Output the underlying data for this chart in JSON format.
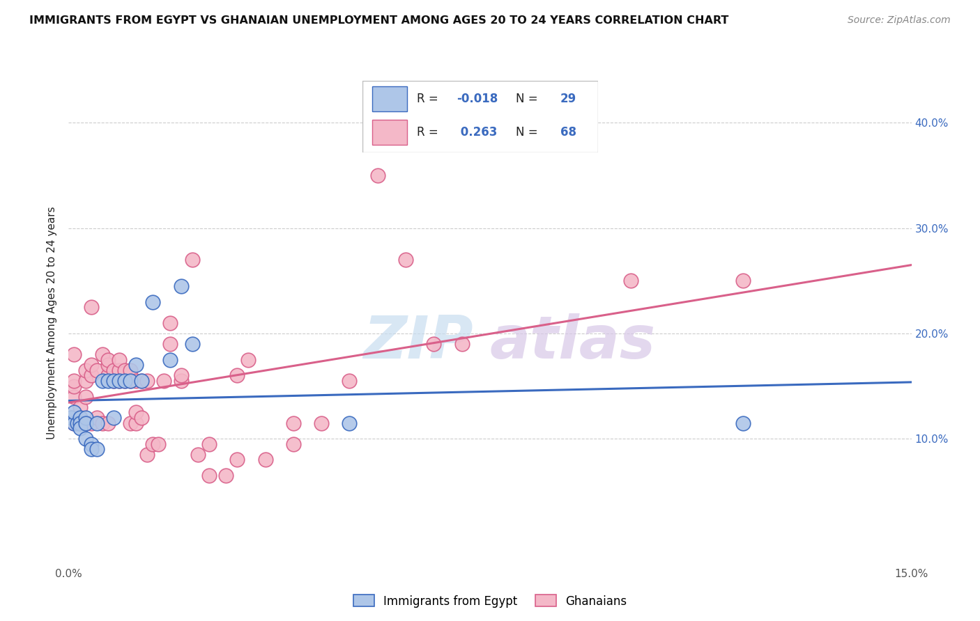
{
  "title": "IMMIGRANTS FROM EGYPT VS GHANAIAN UNEMPLOYMENT AMONG AGES 20 TO 24 YEARS CORRELATION CHART",
  "source": "Source: ZipAtlas.com",
  "ylabel": "Unemployment Among Ages 20 to 24 years",
  "xlim": [
    0.0,
    0.15
  ],
  "ylim": [
    -0.02,
    0.44
  ],
  "xticks": [
    0.0,
    0.05,
    0.1,
    0.15
  ],
  "xtick_labels": [
    "0.0%",
    "",
    "",
    "15.0%"
  ],
  "yticks": [
    0.1,
    0.2,
    0.3,
    0.4
  ],
  "ytick_labels_right": [
    "10.0%",
    "20.0%",
    "30.0%",
    "40.0%"
  ],
  "legend_r_egypt": "-0.018",
  "legend_n_egypt": "29",
  "legend_r_ghana": "0.263",
  "legend_n_ghana": "68",
  "color_egypt": "#aec6e8",
  "color_ghana": "#f4b8c8",
  "line_color_egypt": "#3a6abf",
  "line_color_ghana": "#d9608a",
  "text_color_blue": "#3a6abf",
  "text_color_red": "#d9608a",
  "text_color_dark": "#222222",
  "watermark_zip_color": "#c8ddf0",
  "watermark_atlas_color": "#d8c8e8",
  "background_color": "#ffffff",
  "grid_color": "#cccccc",
  "legend_edge_color": "#bbbbbb",
  "egypt_x": [
    0.0005,
    0.001,
    0.001,
    0.0015,
    0.002,
    0.002,
    0.002,
    0.003,
    0.003,
    0.003,
    0.004,
    0.004,
    0.005,
    0.005,
    0.006,
    0.007,
    0.008,
    0.008,
    0.009,
    0.01,
    0.011,
    0.012,
    0.013,
    0.015,
    0.018,
    0.02,
    0.022,
    0.05,
    0.12
  ],
  "egypt_y": [
    0.12,
    0.115,
    0.125,
    0.115,
    0.12,
    0.115,
    0.11,
    0.12,
    0.115,
    0.1,
    0.095,
    0.09,
    0.115,
    0.09,
    0.155,
    0.155,
    0.155,
    0.12,
    0.155,
    0.155,
    0.155,
    0.17,
    0.155,
    0.23,
    0.175,
    0.245,
    0.19,
    0.115,
    0.115
  ],
  "ghana_x": [
    0.0005,
    0.001,
    0.001,
    0.001,
    0.001,
    0.001,
    0.002,
    0.002,
    0.002,
    0.003,
    0.003,
    0.003,
    0.003,
    0.004,
    0.004,
    0.004,
    0.004,
    0.005,
    0.005,
    0.006,
    0.006,
    0.007,
    0.007,
    0.007,
    0.007,
    0.008,
    0.008,
    0.009,
    0.009,
    0.009,
    0.01,
    0.01,
    0.011,
    0.011,
    0.011,
    0.012,
    0.012,
    0.012,
    0.013,
    0.013,
    0.014,
    0.014,
    0.015,
    0.016,
    0.017,
    0.018,
    0.018,
    0.02,
    0.02,
    0.022,
    0.023,
    0.025,
    0.025,
    0.028,
    0.03,
    0.03,
    0.032,
    0.035,
    0.04,
    0.04,
    0.045,
    0.05,
    0.055,
    0.06,
    0.065,
    0.07,
    0.1,
    0.12
  ],
  "ghana_y": [
    0.12,
    0.14,
    0.15,
    0.155,
    0.18,
    0.115,
    0.115,
    0.12,
    0.13,
    0.115,
    0.14,
    0.155,
    0.165,
    0.115,
    0.16,
    0.17,
    0.225,
    0.12,
    0.165,
    0.115,
    0.18,
    0.115,
    0.16,
    0.17,
    0.175,
    0.155,
    0.165,
    0.155,
    0.165,
    0.175,
    0.155,
    0.165,
    0.115,
    0.155,
    0.165,
    0.115,
    0.125,
    0.155,
    0.12,
    0.155,
    0.085,
    0.155,
    0.095,
    0.095,
    0.155,
    0.19,
    0.21,
    0.155,
    0.16,
    0.27,
    0.085,
    0.095,
    0.065,
    0.065,
    0.08,
    0.16,
    0.175,
    0.08,
    0.115,
    0.095,
    0.115,
    0.155,
    0.35,
    0.27,
    0.19,
    0.19,
    0.25,
    0.25
  ]
}
